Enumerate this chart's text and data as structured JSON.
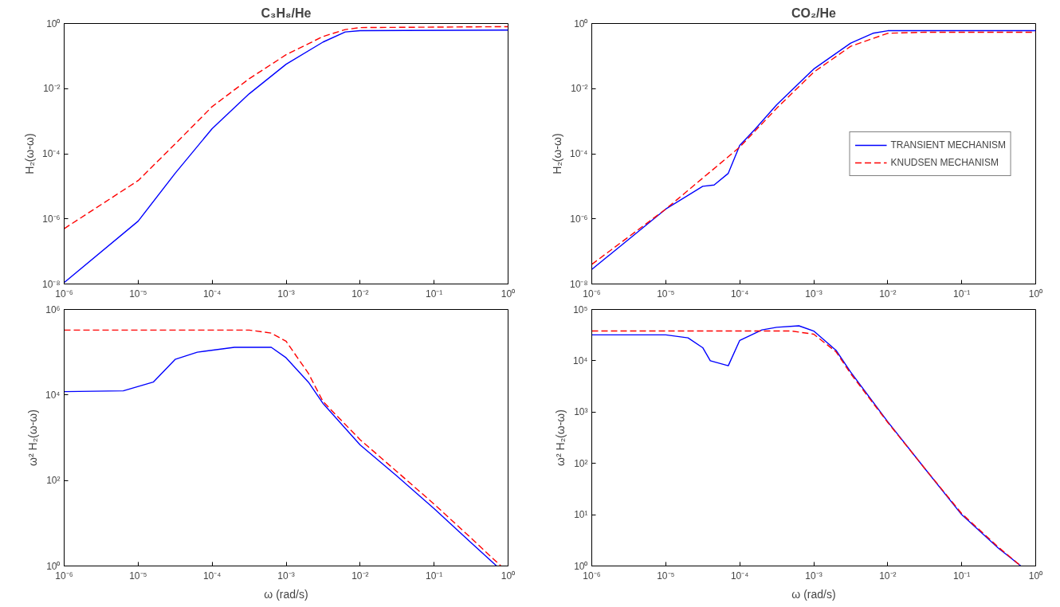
{
  "chart_data": [
    {
      "type": "line",
      "title": "C₃H₈/He",
      "ylabel": "H₂(ω-ω)",
      "log": "xy",
      "grid": false,
      "legend": false,
      "xlim": [
        1e-06,
        1
      ],
      "ylim": [
        1e-08,
        1
      ],
      "xticks": [
        {
          "value": 1e-06,
          "label": "10⁻⁶"
        },
        {
          "value": 1e-05,
          "label": "10⁻⁵"
        },
        {
          "value": 0.0001,
          "label": "10⁻⁴"
        },
        {
          "value": 0.001,
          "label": "10⁻³"
        },
        {
          "value": 0.01,
          "label": "10⁻²"
        },
        {
          "value": 0.1,
          "label": "10⁻¹"
        },
        {
          "value": 1,
          "label": "10⁰"
        }
      ],
      "yticks": [
        {
          "value": 1e-08,
          "label": "10⁻⁸"
        },
        {
          "value": 1e-06,
          "label": "10⁻⁶"
        },
        {
          "value": 0.0001,
          "label": "10⁻⁴"
        },
        {
          "value": 0.01,
          "label": "10⁻²"
        },
        {
          "value": 1,
          "label": "10⁰"
        }
      ],
      "series": [
        {
          "color": "#0000ff",
          "line_style": "solid",
          "x": [
            1e-06,
            1e-05,
            3.16e-05,
            0.0001,
            0.000316,
            0.001,
            0.00316,
            0.0063,
            0.01,
            1
          ],
          "values": [
            1.1e-08,
            8.5e-07,
            2.5e-05,
            0.00059,
            0.0069,
            0.056,
            0.27,
            0.55,
            0.6,
            0.63
          ]
        },
        {
          "color": "#ff0000",
          "line_style": "dashed",
          "x": [
            1e-06,
            1e-05,
            3.16e-05,
            0.0001,
            0.000316,
            0.001,
            0.00316,
            0.0063,
            0.01,
            1
          ],
          "values": [
            5e-07,
            1.5e-05,
            0.0002,
            0.0028,
            0.02,
            0.11,
            0.4,
            0.65,
            0.75,
            0.8
          ]
        }
      ]
    },
    {
      "type": "line",
      "title": "CO₂/He",
      "ylabel": "H₂(ω-ω)",
      "log": "xy",
      "grid": false,
      "legend": "right",
      "xlim": [
        1e-06,
        1
      ],
      "ylim": [
        1e-08,
        1
      ],
      "xticks": [
        {
          "value": 1e-06,
          "label": "10⁻⁶"
        },
        {
          "value": 1e-05,
          "label": "10⁻⁵"
        },
        {
          "value": 0.0001,
          "label": "10⁻⁴"
        },
        {
          "value": 0.001,
          "label": "10⁻³"
        },
        {
          "value": 0.01,
          "label": "10⁻²"
        },
        {
          "value": 0.1,
          "label": "10⁻¹"
        },
        {
          "value": 1,
          "label": "10⁰"
        }
      ],
      "yticks": [
        {
          "value": 1e-08,
          "label": "10⁻⁸"
        },
        {
          "value": 1e-06,
          "label": "10⁻⁶"
        },
        {
          "value": 0.0001,
          "label": "10⁻⁴"
        },
        {
          "value": 0.01,
          "label": "10⁻²"
        },
        {
          "value": 1,
          "label": "10⁰"
        }
      ],
      "series": [
        {
          "name": "TRANSIENT MECHANISM",
          "color": "#0000ff",
          "line_style": "solid",
          "x": [
            1e-06,
            1e-05,
            3.16e-05,
            4.5e-05,
            7e-05,
            0.0001,
            0.00016,
            0.000316,
            0.001,
            0.00316,
            0.0063,
            0.01,
            1
          ],
          "values": [
            2.8e-08,
            2e-06,
            1e-05,
            1.1e-05,
            2.5e-05,
            0.00018,
            0.00056,
            0.0032,
            0.04,
            0.25,
            0.5,
            0.6,
            0.6
          ]
        },
        {
          "name": "KNUDSEN MECHANISM",
          "color": "#ff0000",
          "line_style": "dashed",
          "x": [
            1e-06,
            1e-05,
            0.0001,
            0.000316,
            0.001,
            0.00316,
            0.01,
            0.0316,
            1
          ],
          "values": [
            4e-08,
            2e-06,
            0.00016,
            0.0025,
            0.032,
            0.2,
            0.5,
            0.54,
            0.54
          ]
        }
      ]
    },
    {
      "type": "line",
      "xlabel": "ω (rad/s)",
      "ylabel": "ω² H₂(ω-ω)",
      "log": "xy",
      "grid": false,
      "legend": false,
      "xlim": [
        1e-06,
        1
      ],
      "ylim": [
        1,
        1000000.0
      ],
      "xticks": [
        {
          "value": 1e-06,
          "label": "10⁻⁶"
        },
        {
          "value": 1e-05,
          "label": "10⁻⁵"
        },
        {
          "value": 0.0001,
          "label": "10⁻⁴"
        },
        {
          "value": 0.001,
          "label": "10⁻³"
        },
        {
          "value": 0.01,
          "label": "10⁻²"
        },
        {
          "value": 0.1,
          "label": "10⁻¹"
        },
        {
          "value": 1,
          "label": "10⁰"
        }
      ],
      "yticks": [
        {
          "value": 1,
          "label": "10⁰"
        },
        {
          "value": 100,
          "label": "10²"
        },
        {
          "value": 10000,
          "label": "10⁴"
        },
        {
          "value": 1000000,
          "label": "10⁶"
        }
      ],
      "series": [
        {
          "color": "#0000ff",
          "line_style": "solid",
          "x": [
            1e-06,
            6.3e-06,
            1.6e-05,
            3.16e-05,
            6.3e-05,
            0.0002,
            0.00063,
            0.001,
            0.002,
            0.00316,
            0.01,
            0.0316,
            0.1,
            0.316,
            0.7
          ],
          "values": [
            12000,
            12500,
            20000,
            68000,
            100000,
            130000,
            130000,
            74000,
            20000,
            6300,
            680,
            126,
            22,
            3.5,
            1
          ]
        },
        {
          "color": "#ff0000",
          "line_style": "dashed",
          "x": [
            1e-06,
            0.000316,
            0.00063,
            0.001,
            0.002,
            0.00316,
            0.01,
            0.0316,
            0.1,
            0.316,
            0.8
          ],
          "values": [
            330000,
            330000,
            280000,
            180000,
            32000,
            7000,
            900,
            160,
            28,
            4.5,
            1
          ]
        }
      ]
    },
    {
      "type": "line",
      "xlabel": "ω (rad/s)",
      "ylabel": "ω² H₂(ω-ω)",
      "log": "xy",
      "grid": false,
      "legend": false,
      "xlim": [
        1e-06,
        1
      ],
      "ylim": [
        1,
        100000
      ],
      "xticks": [
        {
          "value": 1e-06,
          "label": "10⁻⁶"
        },
        {
          "value": 1e-05,
          "label": "10⁻⁵"
        },
        {
          "value": 0.0001,
          "label": "10⁻⁴"
        },
        {
          "value": 0.001,
          "label": "10⁻³"
        },
        {
          "value": 0.01,
          "label": "10⁻²"
        },
        {
          "value": 0.1,
          "label": "10⁻¹"
        },
        {
          "value": 1,
          "label": "10⁰"
        }
      ],
      "yticks": [
        {
          "value": 1,
          "label": "10⁰"
        },
        {
          "value": 10,
          "label": "10¹"
        },
        {
          "value": 100,
          "label": "10²"
        },
        {
          "value": 1000,
          "label": "10³"
        },
        {
          "value": 10000,
          "label": "10⁴"
        },
        {
          "value": 100000,
          "label": "10⁵"
        }
      ],
      "series": [
        {
          "color": "#0000ff",
          "line_style": "solid",
          "x": [
            1e-06,
            1e-05,
            2e-05,
            3.16e-05,
            4e-05,
            7e-05,
            0.0001,
            0.0002,
            0.000316,
            0.00063,
            0.001,
            0.002,
            0.00316,
            0.01,
            0.0316,
            0.1,
            0.316,
            0.63
          ],
          "values": [
            32000,
            32000,
            28000,
            18000,
            10000,
            8000,
            25000,
            40000,
            45000,
            48000,
            38000,
            16000,
            6000,
            650,
            80,
            10,
            2.2,
            1
          ]
        },
        {
          "color": "#ff0000",
          "line_style": "dashed",
          "x": [
            1e-06,
            0.0005,
            0.001,
            0.002,
            0.00316,
            0.01,
            0.0316,
            0.1,
            0.316,
            0.63
          ],
          "values": [
            38000,
            38000,
            33000,
            15000,
            5600,
            630,
            80,
            10.5,
            2.3,
            1
          ]
        }
      ]
    }
  ]
}
